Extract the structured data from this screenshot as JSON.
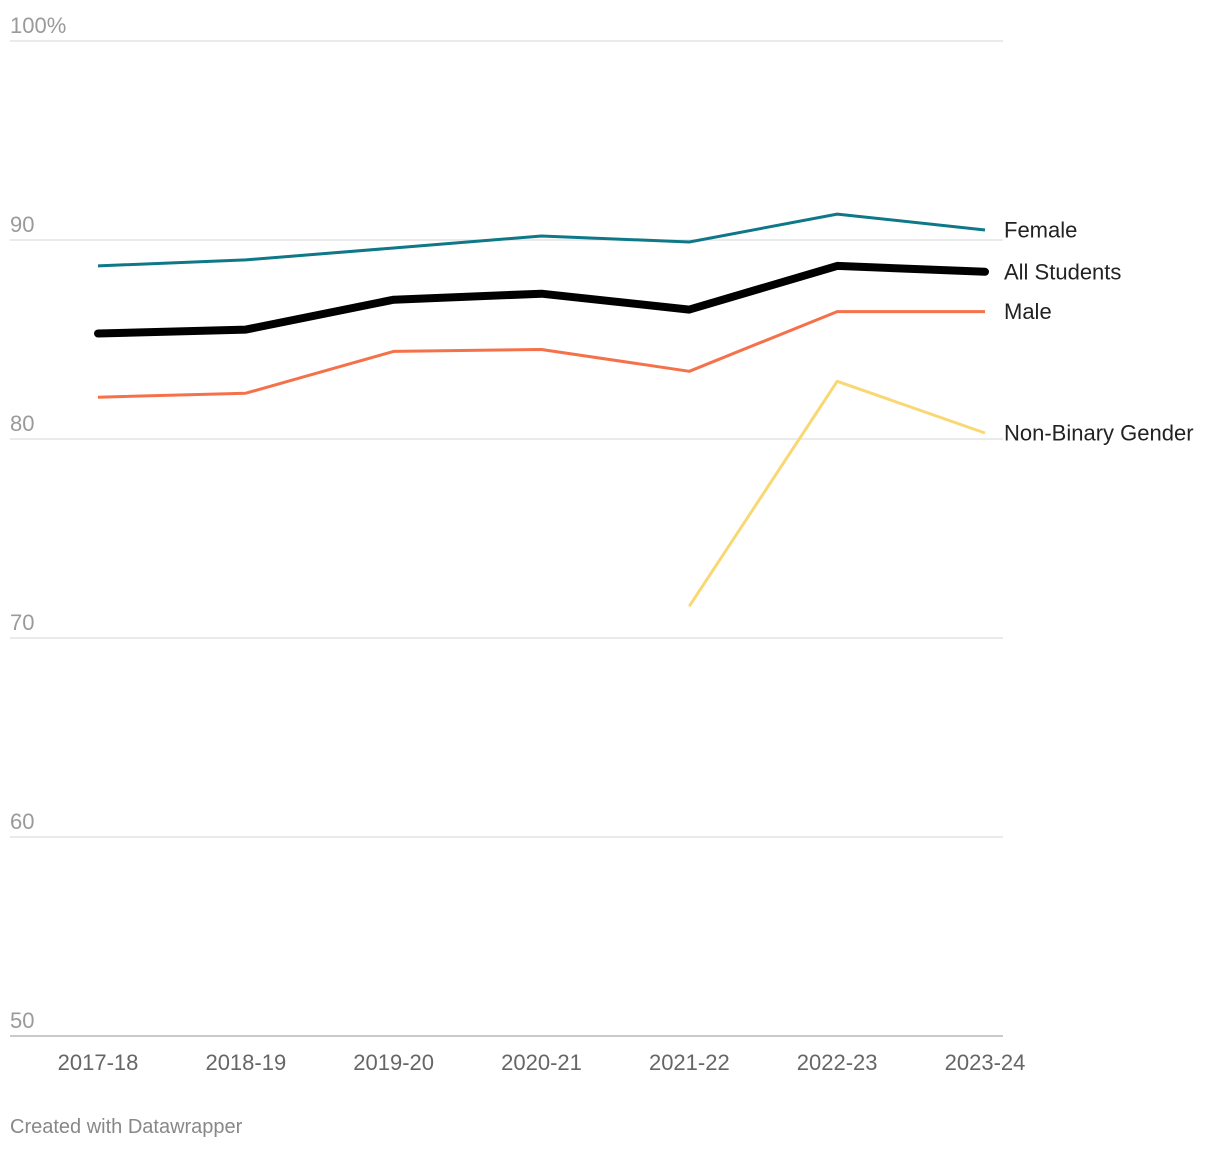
{
  "chart_data": {
    "type": "line",
    "title": "",
    "xlabel": "",
    "ylabel": "",
    "categories": [
      "2017-18",
      "2018-19",
      "2019-20",
      "2020-21",
      "2021-22",
      "2022-23",
      "2023-24"
    ],
    "ylim": [
      50,
      100
    ],
    "y_ticks": [
      {
        "value": 100,
        "label": "100%"
      },
      {
        "value": 90,
        "label": "90"
      },
      {
        "value": 80,
        "label": "80"
      },
      {
        "value": 70,
        "label": "70"
      },
      {
        "value": 60,
        "label": "60"
      },
      {
        "value": 50,
        "label": "50"
      }
    ],
    "grid": true,
    "legend": "direct-labels-right",
    "series": [
      {
        "name": "Female",
        "color": "#0e7788",
        "emphasis": false,
        "values": [
          88.7,
          89.0,
          89.6,
          90.2,
          89.9,
          91.3,
          90.5
        ]
      },
      {
        "name": "All Students",
        "color": "#000000",
        "emphasis": true,
        "values": [
          85.3,
          85.5,
          87.0,
          87.3,
          86.5,
          88.7,
          88.4
        ]
      },
      {
        "name": "Male",
        "color": "#f4714a",
        "emphasis": false,
        "values": [
          82.1,
          82.3,
          84.4,
          84.5,
          83.4,
          86.4,
          86.4
        ]
      },
      {
        "name": "Non-Binary Gender",
        "color": "#f9d874",
        "emphasis": false,
        "values": [
          null,
          null,
          null,
          null,
          71.6,
          82.9,
          80.3
        ]
      }
    ]
  },
  "footer": {
    "credit": "Created with Datawrapper"
  }
}
